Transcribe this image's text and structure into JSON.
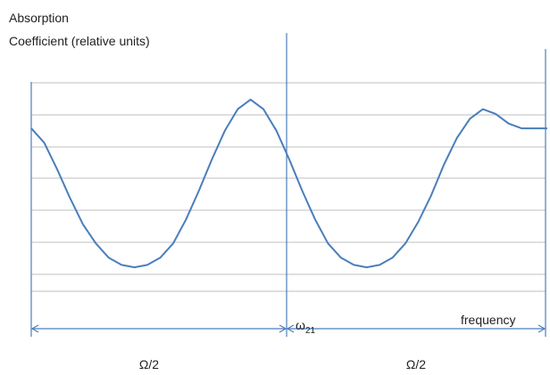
{
  "chart_data": {
    "type": "line",
    "ylabel_line1": "Absorption",
    "ylabel_line2": "Coefficient (relative units)",
    "xlabel": "frequency",
    "marker_label_base": "ω",
    "marker_label_sub": "21",
    "span_labels": [
      "Ω/2",
      "Ω/2"
    ],
    "xlim": [
      0,
      1
    ],
    "ylim": [
      0,
      1
    ],
    "grid": true,
    "series": [
      {
        "x": [
          0.0,
          0.025,
          0.05,
          0.075,
          0.1,
          0.125,
          0.15,
          0.175,
          0.2,
          0.225,
          0.25,
          0.275,
          0.3,
          0.325,
          0.35,
          0.375,
          0.4,
          0.425,
          0.45,
          0.475,
          0.5,
          0.525,
          0.55,
          0.575,
          0.6,
          0.625,
          0.65,
          0.675,
          0.7,
          0.725,
          0.75,
          0.775,
          0.8,
          0.825,
          0.85,
          0.875,
          0.9,
          0.925,
          0.95,
          0.975,
          1.0
        ],
        "y": [
          0.68,
          0.62,
          0.51,
          0.39,
          0.28,
          0.2,
          0.14,
          0.11,
          0.1,
          0.11,
          0.14,
          0.2,
          0.3,
          0.42,
          0.55,
          0.67,
          0.76,
          0.8,
          0.76,
          0.67,
          0.55,
          0.42,
          0.3,
          0.2,
          0.14,
          0.11,
          0.1,
          0.11,
          0.14,
          0.2,
          0.29,
          0.4,
          0.53,
          0.64,
          0.72,
          0.76,
          0.74,
          0.7,
          0.68,
          0.68,
          0.68
        ]
      }
    ],
    "colors": {
      "curve": "#4a7ebb",
      "grid": "#bfbfbf",
      "axis": "#4a7ebb",
      "arrow": "#4a7ebb"
    }
  }
}
